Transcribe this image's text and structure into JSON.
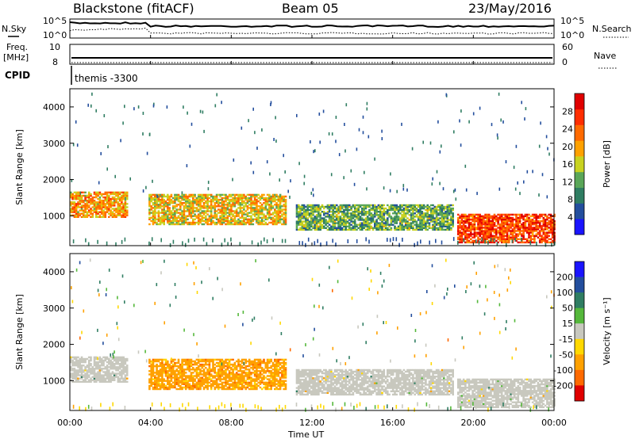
{
  "header": {
    "radar": "Blackstone (fitACF)",
    "beam": "Beam 05",
    "date": "23/May/2016"
  },
  "noise_panel": {
    "left_label": "N.Sky",
    "right_label": "N.Search",
    "left_ticks": [
      "10^5",
      "10^0"
    ],
    "right_ticks": [
      "10^5",
      "10^0"
    ]
  },
  "freq_panel": {
    "left_label_1": "Freq.",
    "left_label_2": "[MHz]",
    "left_ticks": [
      "10",
      "8"
    ],
    "right_label": "Nave",
    "right_ticks": [
      "60",
      "0"
    ]
  },
  "cpid": {
    "label": "CPID",
    "program": "themis -3300"
  },
  "colors": {
    "power_scale": [
      "#1a14ff",
      "#234e9d",
      "#2f7d62",
      "#5aa658",
      "#c8d220",
      "#ffa100",
      "#ff6a00",
      "#ff2d00",
      "#e00000"
    ],
    "velocity_scale": [
      "#1a14ff",
      "#234e9d",
      "#2f7d62",
      "#55b83b",
      "#c8c8be",
      "#ffd800",
      "#ffa100",
      "#ff6a00",
      "#e00000"
    ],
    "ground_scatter": "#c8c8be"
  },
  "chart_data": [
    {
      "type": "heatmap",
      "name": "power",
      "x": {
        "label": "Time UT",
        "range": [
          "00:00",
          "24:00"
        ],
        "ticks": [
          "00:00",
          "04:00",
          "08:00",
          "12:00",
          "16:00",
          "20:00",
          "00:00"
        ]
      },
      "y": {
        "label": "Slant Range [km]",
        "range": [
          180,
          4500
        ],
        "ticks": [
          1000,
          2000,
          3000,
          4000
        ]
      },
      "colorbar": {
        "label": "Power [dB]",
        "range": [
          0,
          32
        ],
        "ticks": [
          4,
          8,
          12,
          16,
          20,
          24,
          28
        ]
      },
      "regions": [
        {
          "t0": 0.0,
          "t1": 2.8,
          "r0": 950,
          "r1": 1650,
          "value": 20
        },
        {
          "t0": 3.9,
          "t1": 10.7,
          "r0": 750,
          "r1": 1600,
          "value": 18
        },
        {
          "t0": 11.2,
          "t1": 19.0,
          "r0": 600,
          "r1": 1300,
          "value": 12
        },
        {
          "t0": 19.2,
          "t1": 24.0,
          "r0": 250,
          "r1": 1050,
          "value": 26
        }
      ]
    },
    {
      "type": "heatmap",
      "name": "velocity",
      "x": {
        "label": "Time UT",
        "range": [
          "00:00",
          "24:00"
        ],
        "ticks": [
          "00:00",
          "04:00",
          "08:00",
          "12:00",
          "16:00",
          "20:00",
          "00:00"
        ]
      },
      "y": {
        "label": "Slant Range [km]",
        "range": [
          180,
          4500
        ],
        "ticks": [
          1000,
          2000,
          3000,
          4000
        ]
      },
      "colorbar": {
        "label": "Velocity [m s⁻¹]",
        "ticks": [
          "200",
          "100",
          "50",
          "15",
          "-15",
          "-50",
          "-100",
          "-200"
        ]
      },
      "regions": [
        {
          "t0": 0.0,
          "t1": 2.8,
          "r0": 950,
          "r1": 1650,
          "value": "ground scatter"
        },
        {
          "t0": 3.9,
          "t1": 10.7,
          "r0": 750,
          "r1": 1600,
          "value": -75
        },
        {
          "t0": 11.2,
          "t1": 19.0,
          "r0": 600,
          "r1": 1300,
          "value": "ground scatter"
        },
        {
          "t0": 19.2,
          "t1": 24.0,
          "r0": 250,
          "r1": 1050,
          "value": "ground scatter"
        }
      ]
    }
  ]
}
